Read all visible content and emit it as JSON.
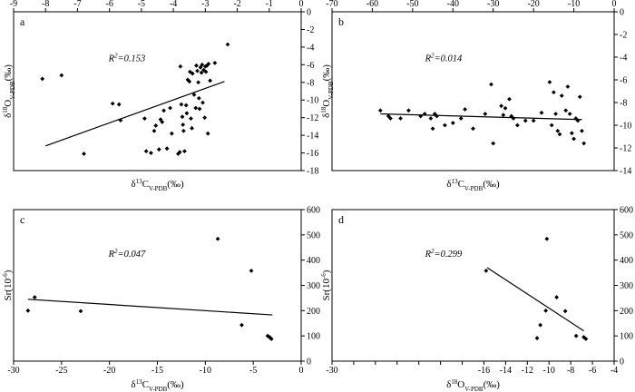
{
  "chart_data": [
    {
      "type": "scatter",
      "panel_label": "a",
      "xlabel": "δ13CV-PDB(‰)",
      "ylabel": "δ18OV-PDB(‰)",
      "x_axis_position": "top",
      "y_axis_position": "right",
      "xlim": [
        -9,
        0
      ],
      "ylim": [
        -18,
        0
      ],
      "xticks": [
        -9,
        -8,
        -7,
        -6,
        -5,
        -4,
        -3,
        -2,
        -1,
        0
      ],
      "yticks": [
        0,
        -2,
        -4,
        -6,
        -8,
        -10,
        -12,
        -14,
        -16,
        -18
      ],
      "annotation": "R2=0.153",
      "points": [
        [
          -8.1,
          -7.6
        ],
        [
          -7.5,
          -7.2
        ],
        [
          -6.8,
          -16.1
        ],
        [
          -5.9,
          -10.4
        ],
        [
          -5.7,
          -10.5
        ],
        [
          -5.65,
          -12.3
        ],
        [
          -4.9,
          -12.1
        ],
        [
          -4.85,
          -15.8
        ],
        [
          -4.7,
          -16.0
        ],
        [
          -4.6,
          -13.5
        ],
        [
          -4.55,
          -12.9
        ],
        [
          -4.45,
          -15.6
        ],
        [
          -4.4,
          -12.2
        ],
        [
          -4.35,
          -12.5
        ],
        [
          -4.3,
          -11.2
        ],
        [
          -4.2,
          -15.5
        ],
        [
          -4.1,
          -10.9
        ],
        [
          -4.05,
          -13.8
        ],
        [
          -3.85,
          -16.1
        ],
        [
          -3.8,
          -15.9
        ],
        [
          -3.78,
          -6.2
        ],
        [
          -3.75,
          -10.5
        ],
        [
          -3.72,
          -11.9
        ],
        [
          -3.7,
          -12.8
        ],
        [
          -3.68,
          -13.5
        ],
        [
          -3.65,
          -15.8
        ],
        [
          -3.6,
          -10.6
        ],
        [
          -3.58,
          -11.5
        ],
        [
          -3.55,
          -7.7
        ],
        [
          -3.5,
          -7.9
        ],
        [
          -3.48,
          -6.8
        ],
        [
          -3.45,
          -12.1
        ],
        [
          -3.42,
          -13.2
        ],
        [
          -3.4,
          -7.0
        ],
        [
          -3.35,
          -9.4
        ],
        [
          -3.3,
          -10.9
        ],
        [
          -3.28,
          -6.1
        ],
        [
          -3.25,
          -6.7
        ],
        [
          -3.22,
          -8.0
        ],
        [
          -3.2,
          -9.8
        ],
        [
          -3.18,
          -11.0
        ],
        [
          -3.15,
          -6.3
        ],
        [
          -3.12,
          -6.9
        ],
        [
          -3.1,
          -6.0
        ],
        [
          -3.08,
          -10.3
        ],
        [
          -3.05,
          -6.6
        ],
        [
          -3.02,
          -12.0
        ],
        [
          -3.0,
          -6.2
        ],
        [
          -2.98,
          -6.8
        ],
        [
          -2.95,
          -6.1
        ],
        [
          -2.92,
          -13.8
        ],
        [
          -2.9,
          -5.9
        ],
        [
          -2.85,
          -7.8
        ],
        [
          -2.7,
          -5.8
        ],
        [
          -2.3,
          -3.7
        ]
      ],
      "trendline": [
        [
          -8.0,
          -15.2
        ],
        [
          -2.4,
          -7.9
        ]
      ]
    },
    {
      "type": "scatter",
      "panel_label": "b",
      "xlabel": "δ13CV-PDB(‰)",
      "ylabel": "δ18OV-PDB(‰)",
      "x_axis_position": "top",
      "y_axis_position": "right",
      "xlim": [
        -70,
        0
      ],
      "ylim": [
        -14,
        0
      ],
      "xticks": [
        -70,
        -60,
        -50,
        -40,
        -30,
        -20,
        -10,
        0
      ],
      "yticks": [
        0,
        -2,
        -4,
        -6,
        -8,
        -10,
        -12,
        -14
      ],
      "annotation": "R2=0.014",
      "points": [
        [
          -58,
          -8.7
        ],
        [
          -56,
          -9.2
        ],
        [
          -55.5,
          -9.4
        ],
        [
          -53,
          -9.4
        ],
        [
          -51,
          -8.7
        ],
        [
          -48,
          -9.2
        ],
        [
          -47,
          -9.0
        ],
        [
          -45.5,
          -9.4
        ],
        [
          -45,
          -10.3
        ],
        [
          -44.5,
          -9.0
        ],
        [
          -44,
          -9.2
        ],
        [
          -42,
          -10.0
        ],
        [
          -40,
          -9.8
        ],
        [
          -38,
          -9.4
        ],
        [
          -37,
          -8.6
        ],
        [
          -35,
          -10.3
        ],
        [
          -32,
          -9.0
        ],
        [
          -30.5,
          -6.4
        ],
        [
          -30,
          -11.6
        ],
        [
          -28,
          -8.3
        ],
        [
          -27.5,
          -9.1
        ],
        [
          -27,
          -8.5
        ],
        [
          -26,
          -7.7
        ],
        [
          -25.5,
          -9.2
        ],
        [
          -25,
          -9.4
        ],
        [
          -24,
          -10.0
        ],
        [
          -22,
          -9.6
        ],
        [
          -20,
          -9.6
        ],
        [
          -18,
          -8.9
        ],
        [
          -16,
          -6.2
        ],
        [
          -15.5,
          -10.0
        ],
        [
          -15,
          -7.1
        ],
        [
          -14.5,
          -9.0
        ],
        [
          -14,
          -10.5
        ],
        [
          -13.5,
          -10.8
        ],
        [
          -13,
          -7.4
        ],
        [
          -12,
          -8.7
        ],
        [
          -11.5,
          -6.6
        ],
        [
          -11,
          -9.0
        ],
        [
          -10.5,
          -10.7
        ],
        [
          -10,
          -11.2
        ],
        [
          -9.5,
          -9.4
        ],
        [
          -9,
          -9.6
        ],
        [
          -8.5,
          -7.5
        ],
        [
          -8,
          -10.5
        ],
        [
          -7.5,
          -11.6
        ]
      ],
      "trendline": [
        [
          -58,
          -9.0
        ],
        [
          -8,
          -9.5
        ]
      ]
    },
    {
      "type": "scatter",
      "panel_label": "c",
      "xlabel": "δ13CV-PDB(‰)",
      "ylabel": "Sr(10-6)",
      "x_axis_position": "bottom",
      "y_axis_position": "right",
      "xlim": [
        -30,
        0
      ],
      "ylim": [
        0,
        600
      ],
      "xticks": [
        -30,
        -25,
        -20,
        -15,
        -10,
        -5,
        0
      ],
      "yticks": [
        0,
        100,
        200,
        300,
        400,
        500,
        600
      ],
      "annotation": "R2=0.047",
      "points": [
        [
          -28.5,
          200
        ],
        [
          -27.8,
          253
        ],
        [
          -23,
          198
        ],
        [
          -8.7,
          484
        ],
        [
          -5.2,
          358
        ],
        [
          -6.2,
          143
        ],
        [
          -3.5,
          100
        ],
        [
          -3.3,
          95
        ],
        [
          -3.2,
          91
        ],
        [
          -3.1,
          88
        ]
      ],
      "trendline": [
        [
          -28.5,
          245
        ],
        [
          -3.0,
          183
        ]
      ]
    },
    {
      "type": "scatter",
      "panel_label": "d",
      "xlabel": "δ18OV-PDB(‰)",
      "ylabel": "Sr(10-6)",
      "x_axis_position": "bottom",
      "y_axis_position": "right",
      "xlim": [
        -30,
        -4
      ],
      "ylim": [
        0,
        600
      ],
      "xticks": [
        -30,
        -28,
        -26,
        -24,
        -22,
        -20,
        -18,
        -16,
        -14,
        -12,
        -10,
        -8,
        -6,
        -4
      ],
      "xtick_labels": [
        "-30",
        "",
        "",
        "",
        "",
        "",
        "",
        "-16",
        "-14",
        "-12",
        "-10",
        "-8",
        "-6",
        "-4"
      ],
      "yticks": [
        0,
        100,
        200,
        300,
        400,
        500,
        600
      ],
      "annotation": "R2=0.299",
      "points": [
        [
          -15.8,
          358
        ],
        [
          -10.2,
          484
        ],
        [
          -10.3,
          200
        ],
        [
          -9.3,
          253
        ],
        [
          -10.8,
          143
        ],
        [
          -11.1,
          91
        ],
        [
          -8.5,
          198
        ],
        [
          -7.5,
          100
        ],
        [
          -6.8,
          95
        ],
        [
          -6.6,
          88
        ]
      ],
      "trendline": [
        [
          -15.7,
          370
        ],
        [
          -6.8,
          120
        ]
      ]
    }
  ]
}
